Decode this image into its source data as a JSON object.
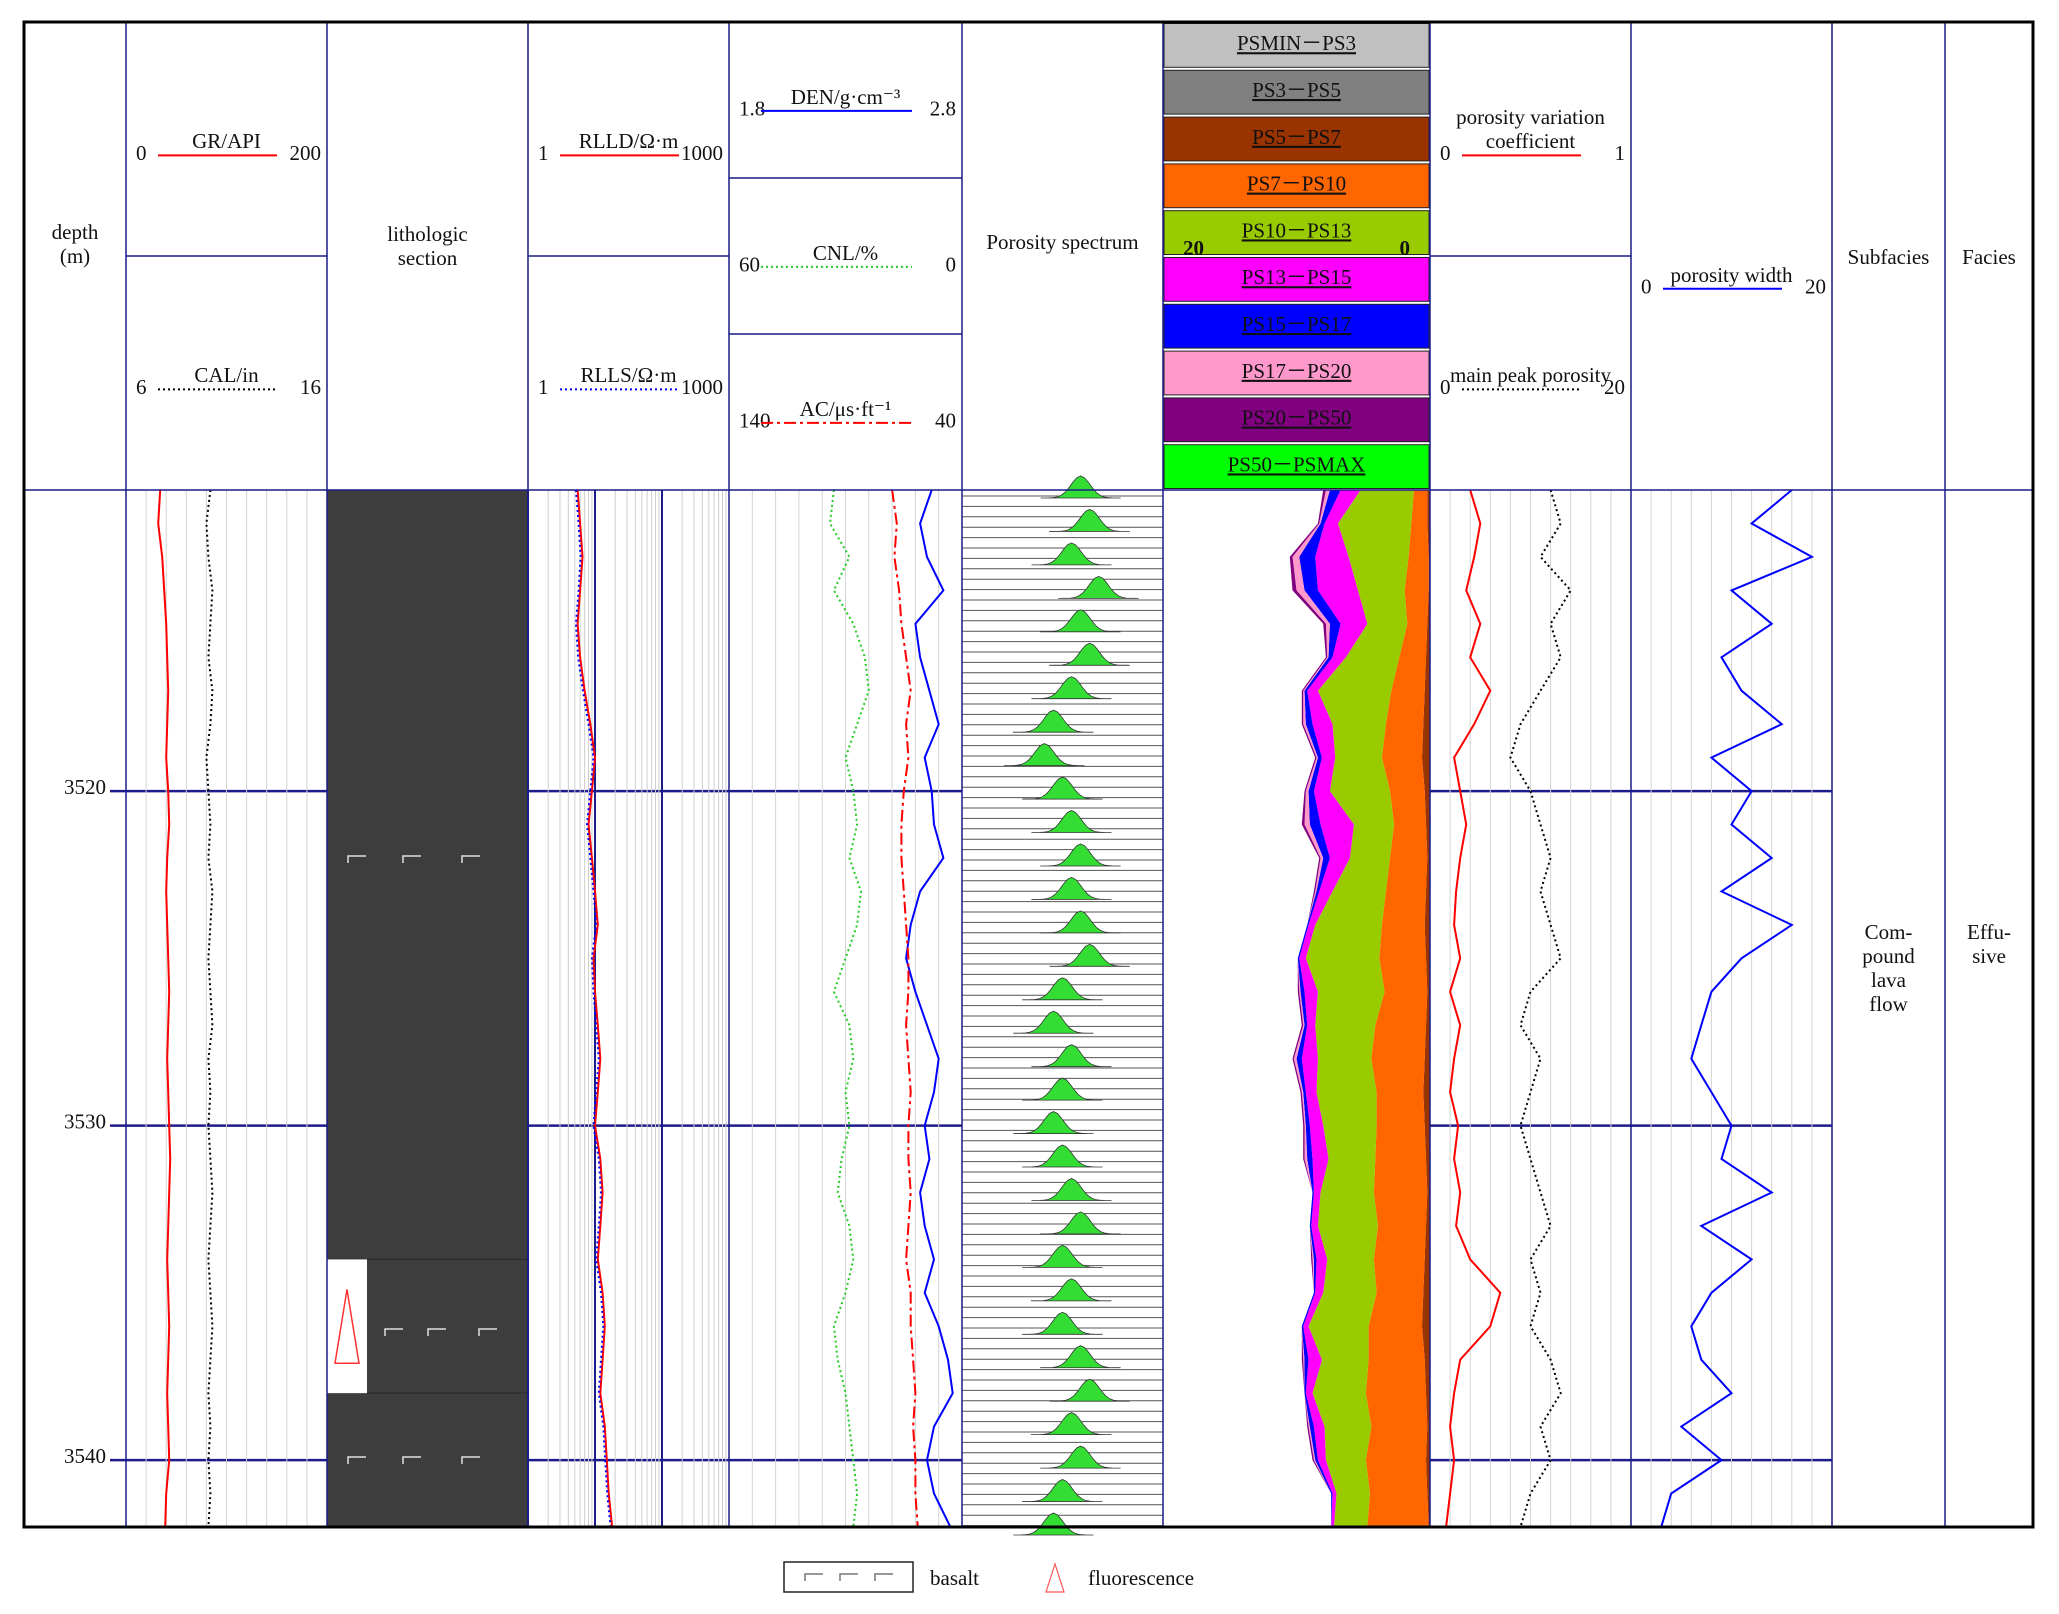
{
  "chart_data": {
    "type": "well-log",
    "depth_label": "depth (m)",
    "depth": [
      3511,
      3512,
      3513,
      3514,
      3515,
      3516,
      3517,
      3518,
      3519,
      3520,
      3521,
      3522,
      3523,
      3524,
      3525,
      3526,
      3527,
      3528,
      3529,
      3530,
      3531,
      3532,
      3533,
      3534,
      3535,
      3536,
      3537,
      3538,
      3539,
      3540,
      3541,
      3542
    ],
    "ylim": [
      3511,
      3542
    ],
    "yticks": [
      3520,
      3530,
      3540
    ],
    "tracks": [
      {
        "type": "curves",
        "series": [
          {
            "name": "GR/API",
            "xlim": [
              0,
              200
            ],
            "color": "#ff0000",
            "dash": "solid",
            "values": [
              34,
              32,
              36,
              38,
              40,
              41,
              42,
              41,
              40,
              42,
              43,
              41,
              40,
              41,
              42,
              43,
              42,
              41,
              42,
              43,
              44,
              43,
              42,
              41,
              42,
              43,
              42,
              41,
              42,
              43,
              40,
              39
            ]
          },
          {
            "name": "CAL/in",
            "xlim": [
              6,
              16
            ],
            "color": "#000000",
            "dash": "dotted",
            "values": [
              10.2,
              10.0,
              10.1,
              10.3,
              10.2,
              10.1,
              10.3,
              10.2,
              10.0,
              10.1,
              10.2,
              10.1,
              10.3,
              10.2,
              10.1,
              10.2,
              10.3,
              10.1,
              10.2,
              10.1,
              10.2,
              10.3,
              10.2,
              10.1,
              10.2,
              10.3,
              10.2,
              10.1,
              10.2,
              10.1,
              10.2,
              10.1
            ]
          }
        ]
      },
      {
        "type": "lithology",
        "title": "lithologic section",
        "intervals": [
          {
            "top": 3511,
            "bottom": 3534
          },
          {
            "top": 3534,
            "bottom": 3538
          },
          {
            "top": 3538,
            "bottom": 3542
          }
        ],
        "fluorescence": [
          3534,
          3538
        ]
      },
      {
        "type": "curves",
        "log": true,
        "series": [
          {
            "name": "RLLD/Ω·m",
            "xlim": [
              1,
              1000
            ],
            "color": "#ff0000",
            "dash": "solid",
            "values": [
              5.5,
              6,
              6.5,
              6,
              5.5,
              6,
              7,
              8.5,
              10,
              9,
              8,
              9,
              10,
              11,
              9.5,
              10,
              11,
              12,
              11,
              10,
              12,
              13,
              12,
              11,
              13,
              14,
              13,
              12,
              14,
              15,
              16,
              18
            ]
          },
          {
            "name": "RLLS/Ω·m",
            "xlim": [
              1,
              1000
            ],
            "color": "#0000ff",
            "dash": "dotted",
            "values": [
              5.2,
              5.7,
              6.1,
              5.7,
              5.2,
              5.6,
              6.6,
              8,
              9.5,
              8.5,
              7.6,
              8.5,
              9.5,
              10.4,
              9,
              9.5,
              10.4,
              11.4,
              10.4,
              9.5,
              11.4,
              12.3,
              11.4,
              10.4,
              12.3,
              13.3,
              12.3,
              11.4,
              13.3,
              14.2,
              15.2,
              17.1
            ]
          }
        ]
      },
      {
        "type": "curves",
        "series": [
          {
            "name": "DEN/g·cm⁻³",
            "xlim": [
              1.8,
              2.8
            ],
            "color": "#0000ff",
            "dash": "solid",
            "values": [
              2.67,
              2.62,
              2.65,
              2.72,
              2.6,
              2.62,
              2.66,
              2.7,
              2.64,
              2.67,
              2.68,
              2.72,
              2.62,
              2.58,
              2.56,
              2.6,
              2.65,
              2.7,
              2.68,
              2.64,
              2.66,
              2.62,
              2.64,
              2.68,
              2.64,
              2.7,
              2.74,
              2.76,
              2.68,
              2.65,
              2.68,
              2.75
            ]
          },
          {
            "name": "CNL/%",
            "xlim": [
              60,
              0
            ],
            "color": "#22cc22",
            "dash": "dotted",
            "values": [
              33,
              34,
              29,
              33,
              28,
              25,
              24,
              27,
              30,
              28,
              27,
              29,
              26,
              27,
              30,
              33,
              29,
              28,
              30,
              29,
              31,
              32,
              29,
              28,
              30,
              33,
              32,
              30,
              29,
              28,
              27,
              28
            ]
          },
          {
            "name": "AC/μs·ft⁻¹",
            "xlim": [
              140,
              40
            ],
            "color": "#ff0000",
            "dash": "dashdot",
            "values": [
              70,
              68,
              69,
              67,
              66,
              64,
              62,
              64,
              63,
              65,
              66,
              66,
              65,
              64,
              63,
              63,
              64,
              63,
              62,
              63,
              63,
              62,
              63,
              64,
              62,
              62,
              61,
              60,
              61,
              60,
              60,
              59
            ]
          }
        ]
      },
      {
        "type": "spectrum",
        "title": "Porosity spectrum",
        "xlim": [
          0,
          20
        ],
        "color": "#33dd33",
        "values": [
          12,
          13,
          11,
          14,
          12,
          13,
          11,
          9,
          8,
          10,
          11,
          12,
          11,
          12,
          13,
          10,
          9,
          11,
          10,
          9,
          10,
          11,
          12,
          10,
          11,
          10,
          12,
          13,
          11,
          12,
          10,
          9
        ]
      },
      {
        "type": "bins",
        "xlim": [
          20,
          0
        ],
        "series": [
          {
            "name": "PSMIN－PS3",
            "color": "#c0c0c0",
            "values": [
              0,
              0,
              0,
              0,
              0,
              0,
              0,
              0,
              0,
              0,
              0,
              0,
              0,
              0,
              0,
              0,
              0,
              0,
              0,
              0,
              0,
              0,
              0,
              0,
              0,
              0,
              0,
              0,
              0,
              0,
              0,
              0
            ]
          },
          {
            "name": "PS3－PS5",
            "color": "#808080",
            "values": [
              0,
              0,
              0,
              0,
              0,
              0,
              0,
              0,
              0,
              0,
              0,
              0,
              0,
              0,
              0,
              0,
              0,
              0,
              0,
              0,
              0,
              0,
              0,
              0,
              0,
              0,
              0,
              0,
              0,
              0,
              0,
              0
            ]
          },
          {
            "name": "PS5－PS7",
            "color": "#993300",
            "values": [
              0.2,
              0.2,
              0.1,
              0.1,
              0.2,
              0.3,
              0.4,
              0.5,
              0.6,
              0.4,
              0.3,
              0.2,
              0.3,
              0.4,
              0.3,
              0.2,
              0.3,
              0.4,
              0.5,
              0.4,
              0.3,
              0.2,
              0.3,
              0.4,
              0.5,
              0.6,
              0.4,
              0.3,
              0.2,
              0.3,
              0.2,
              0.1
            ]
          },
          {
            "name": "PS7－PS10",
            "color": "#ff6600",
            "values": [
              1.0,
              1.2,
              1.5,
              1.8,
              1.5,
              2.0,
              2.5,
              2.8,
              3.0,
              2.6,
              2.4,
              2.8,
              3.0,
              3.2,
              3.5,
              3.2,
              3.8,
              4.0,
              3.5,
              3.6,
              3.8,
              4.0,
              3.6,
              3.8,
              3.5,
              4.0,
              4.2,
              4.5,
              4.2,
              4.5,
              4.3,
              4.6
            ]
          },
          {
            "name": "PS10－PS13",
            "color": "#99cc00",
            "values": [
              4.0,
              5.5,
              4.5,
              3.5,
              3.0,
              4.0,
              5.5,
              4.0,
              3.5,
              4.5,
              3.0,
              3.0,
              4.0,
              5.0,
              5.5,
              5.0,
              4.5,
              4.0,
              4.5,
              4.0,
              3.5,
              4.0,
              4.5,
              3.5,
              4.0,
              4.5,
              3.5,
              4.0,
              3.5,
              3.0,
              2.5,
              2.5
            ]
          },
          {
            "name": "PS13－PS15",
            "color": "#ff00ff",
            "values": [
              1.5,
              1.0,
              2.5,
              3.0,
              2.0,
              1.0,
              0.8,
              1.5,
              1.0,
              1.2,
              2.5,
              1.5,
              1.0,
              0.5,
              0.5,
              1.0,
              0.6,
              1.2,
              0.8,
              1.0,
              1.2,
              0.5,
              0.5,
              0.8,
              0.6,
              0.4,
              1.0,
              0.5,
              0.8,
              0.6,
              0.3,
              0.2
            ]
          },
          {
            "name": "PS15－PS17",
            "color": "#0000ff",
            "values": [
              0.8,
              0.3,
              1.2,
              1.0,
              0.8,
              0.3,
              0.2,
              0.5,
              0.3,
              0.4,
              0.8,
              0.5,
              0.2,
              0.1,
              0.1,
              0.3,
              0.2,
              0.4,
              0.2,
              0.3,
              0.4,
              0.1,
              0.1,
              0.2,
              0.1,
              0.1,
              0.3,
              0.1,
              0.3,
              0.2,
              0.1,
              0
            ]
          },
          {
            "name": "PS17－PS20",
            "color": "#ff99cc",
            "values": [
              0.3,
              0.1,
              0.5,
              0.6,
              0.3,
              0.1,
              0.1,
              0.2,
              0.1,
              0.2,
              0.4,
              0.2,
              0.1,
              0,
              0,
              0.1,
              0.1,
              0.2,
              0.1,
              0.1,
              0.2,
              0,
              0,
              0.1,
              0,
              0,
              0.1,
              0,
              0.1,
              0.1,
              0,
              0
            ]
          },
          {
            "name": "PS20－PS50",
            "color": "#800080",
            "values": [
              0.2,
              0.1,
              0.2,
              0.3,
              0.2,
              0.1,
              0.1,
              0.1,
              0.1,
              0.1,
              0.2,
              0.1,
              0.1,
              0,
              0,
              0.1,
              0.1,
              0.1,
              0.1,
              0.1,
              0.1,
              0,
              0,
              0.1,
              0,
              0,
              0.1,
              0,
              0.1,
              0.1,
              0,
              0
            ]
          },
          {
            "name": "PS50－PSMAX",
            "color": "#00ff00",
            "values": [
              0,
              0,
              0,
              0,
              0,
              0,
              0,
              0,
              0,
              0,
              0,
              0,
              0,
              0,
              0,
              0,
              0,
              0,
              0,
              0,
              0,
              0,
              0,
              0,
              0,
              0,
              0,
              0,
              0,
              0,
              0,
              0
            ]
          }
        ]
      },
      {
        "type": "curves",
        "series": [
          {
            "name": "porosity variation coefficient",
            "xlim": [
              0,
              1
            ],
            "color": "#ff0000",
            "dash": "solid",
            "values": [
              0.2,
              0.25,
              0.22,
              0.18,
              0.25,
              0.2,
              0.3,
              0.22,
              0.12,
              0.15,
              0.18,
              0.15,
              0.13,
              0.12,
              0.15,
              0.1,
              0.15,
              0.12,
              0.1,
              0.14,
              0.12,
              0.15,
              0.13,
              0.2,
              0.35,
              0.3,
              0.15,
              0.12,
              0.1,
              0.12,
              0.1,
              0.08
            ]
          },
          {
            "name": "main peak porosity",
            "xlim": [
              0,
              20
            ],
            "color": "#000000",
            "dash": "dotted",
            "values": [
              12,
              13,
              11,
              14,
              12,
              13,
              11,
              9,
              8,
              10,
              11,
              12,
              11,
              12,
              13,
              10,
              9,
              11,
              10,
              9,
              10,
              11,
              12,
              10,
              11,
              10,
              12,
              13,
              11,
              12,
              10,
              9
            ]
          }
        ]
      },
      {
        "type": "curves",
        "series": [
          {
            "name": "porosity width",
            "xlim": [
              0,
              20
            ],
            "color": "#0000ff",
            "dash": "solid",
            "values": [
              16,
              12,
              18,
              10,
              14,
              9,
              11,
              15,
              8,
              12,
              10,
              14,
              9,
              16,
              11,
              8,
              7,
              6,
              8,
              10,
              9,
              14,
              7,
              12,
              8,
              6,
              7,
              10,
              5,
              9,
              4,
              3
            ]
          }
        ]
      },
      {
        "type": "text",
        "title": "Subfacies",
        "label": "Com-pound lava flow"
      },
      {
        "type": "text",
        "title": "Facies",
        "label": "Effu-sive"
      }
    ],
    "legend": [
      "basalt",
      "fluorescence"
    ]
  }
}
